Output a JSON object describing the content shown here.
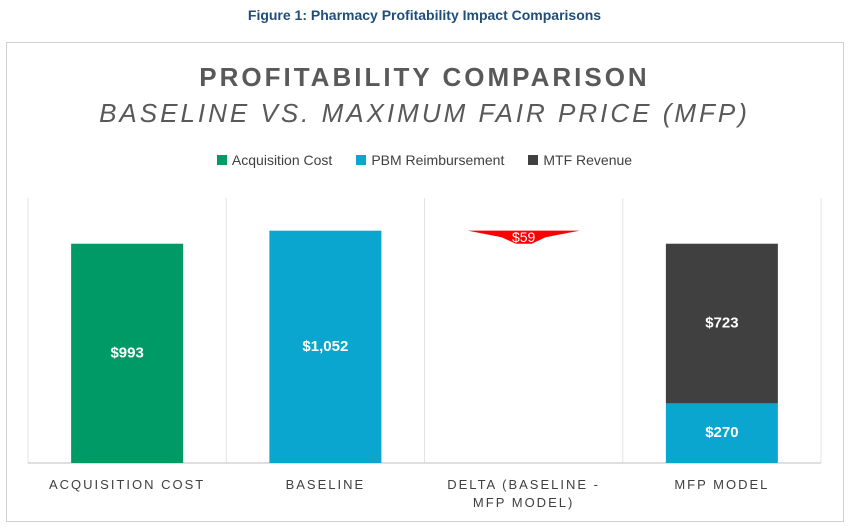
{
  "caption": "Figure 1: Pharmacy Profitability Impact Comparisons",
  "chart_data": {
    "type": "stacked_bar",
    "title": "PROFITABILITY COMPARISON",
    "subtitle": "BASELINE VS. MAXIMUM FAIR PRICE (MFP)",
    "categories": [
      "ACQUISITION COST",
      "BASELINE",
      "DELTA (BASELINE - MFP MODEL)",
      "MFP MODEL"
    ],
    "ylim": [
      0,
      1200
    ],
    "series": [
      {
        "name": "Acquisition Cost",
        "color": "#009a66",
        "values": [
          993,
          null,
          null,
          null
        ],
        "value_labels": [
          "$993",
          null,
          null,
          null
        ]
      },
      {
        "name": "PBM Reimbursement",
        "color": "#0aa6cf",
        "values": [
          null,
          1052,
          null,
          270
        ],
        "value_labels": [
          null,
          "$1,052",
          null,
          "$270"
        ]
      },
      {
        "name": "MTF Revenue",
        "color": "#404040",
        "values": [
          null,
          null,
          null,
          723
        ],
        "value_labels": [
          null,
          null,
          null,
          "$723"
        ]
      }
    ],
    "delta": {
      "value": 59,
      "value_label": "$59",
      "color": "#ff0000"
    }
  }
}
